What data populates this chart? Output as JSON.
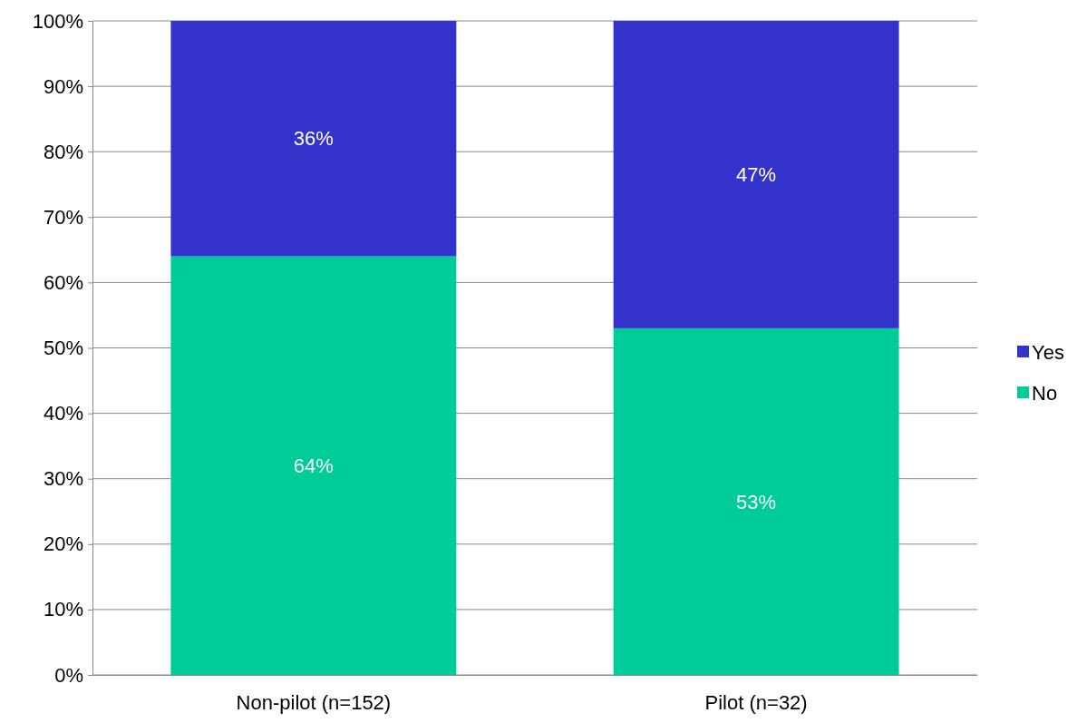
{
  "chart_data": {
    "type": "bar",
    "stacked": true,
    "categories": [
      "Non-pilot (n=152)",
      "Pilot (n=32)"
    ],
    "series": [
      {
        "name": "No",
        "color": "#00cc99",
        "values": [
          64,
          53
        ],
        "value_labels": [
          "64%",
          "53%"
        ]
      },
      {
        "name": "Yes",
        "color": "#3333cc",
        "values": [
          36,
          47
        ],
        "value_labels": [
          "36%",
          "47%"
        ]
      }
    ],
    "ylim": [
      0,
      100
    ],
    "yticks": [
      {
        "value": 0,
        "label": "0%"
      },
      {
        "value": 10,
        "label": "10%"
      },
      {
        "value": 20,
        "label": "20%"
      },
      {
        "value": 30,
        "label": "30%"
      },
      {
        "value": 40,
        "label": "40%"
      },
      {
        "value": 50,
        "label": "50%"
      },
      {
        "value": 60,
        "label": "60%"
      },
      {
        "value": 70,
        "label": "70%"
      },
      {
        "value": 80,
        "label": "80%"
      },
      {
        "value": 90,
        "label": "90%"
      },
      {
        "value": 100,
        "label": "100%"
      }
    ],
    "grid": "y",
    "legend": "right"
  }
}
